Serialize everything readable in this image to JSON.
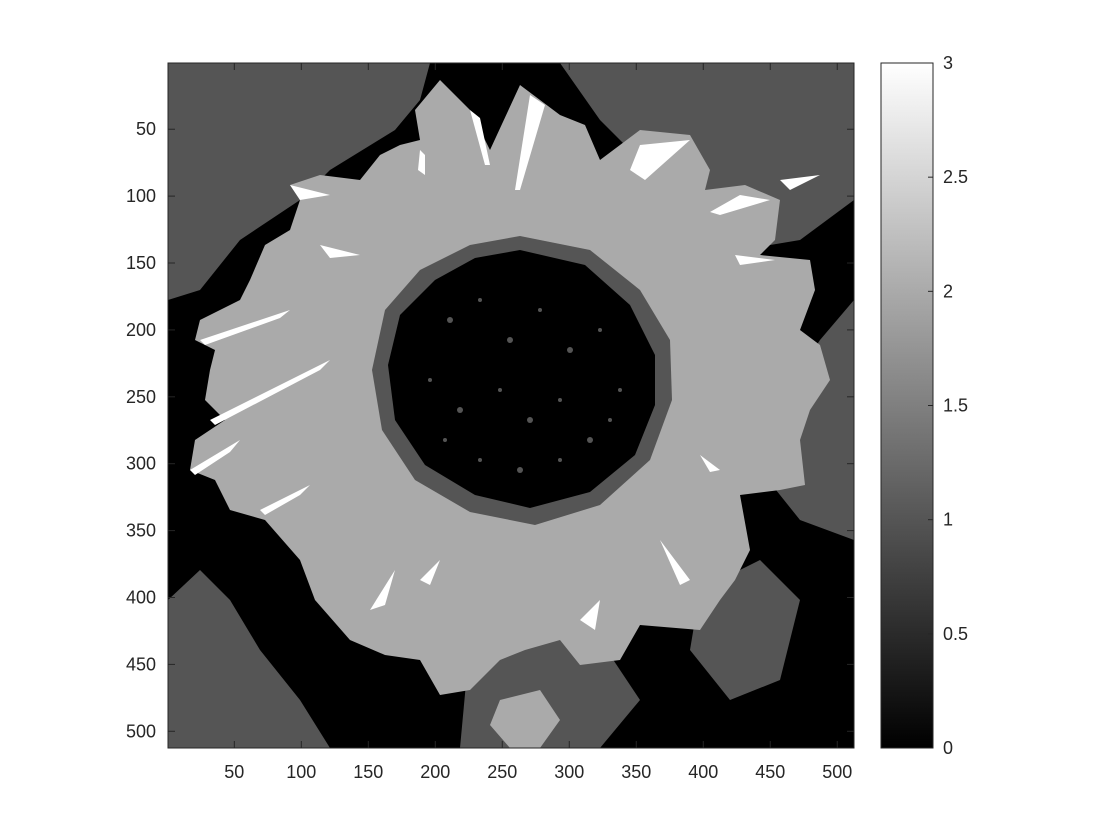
{
  "chart_data": {
    "type": "heatmap",
    "title": "",
    "xlabel": "",
    "ylabel": "",
    "image_size": [
      512,
      512
    ],
    "xlim": [
      0.5,
      512.5
    ],
    "ylim": [
      0.5,
      512.5
    ],
    "y_direction": "reversed",
    "x_ticks": [
      50,
      100,
      150,
      200,
      250,
      300,
      350,
      400,
      450,
      500
    ],
    "x_tick_labels": [
      "50",
      "100",
      "150",
      "200",
      "250",
      "300",
      "350",
      "400",
      "450",
      "500"
    ],
    "y_ticks": [
      50,
      100,
      150,
      200,
      250,
      300,
      350,
      400,
      450,
      500
    ],
    "y_tick_labels": [
      "50",
      "100",
      "150",
      "200",
      "250",
      "300",
      "350",
      "400",
      "450",
      "500"
    ],
    "colormap": "gray",
    "color_limits": [
      0,
      3
    ],
    "levels": [
      0,
      1,
      2,
      3
    ],
    "level_colors": [
      "#000000",
      "#555555",
      "#aaaaaa",
      "#ffffff"
    ],
    "colorbar": {
      "placement": "right",
      "ticks": [
        0,
        0.5,
        1,
        1.5,
        2,
        2.5,
        3
      ],
      "tick_labels": [
        "0",
        "0.5",
        "1",
        "1.5",
        "2",
        "2.5",
        "3"
      ]
    },
    "grid": false,
    "content": "quantized sunflower image"
  }
}
